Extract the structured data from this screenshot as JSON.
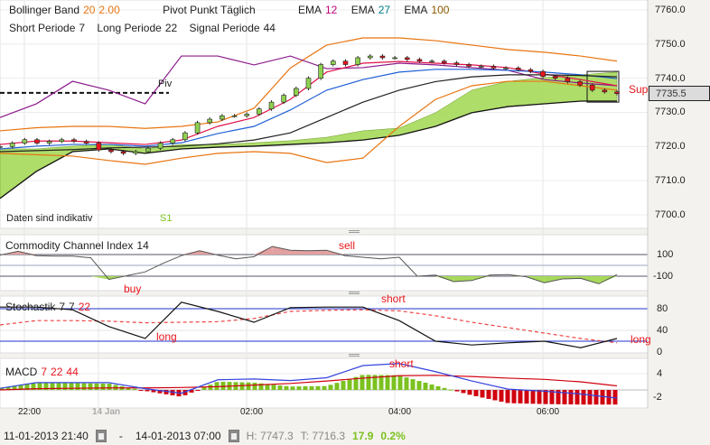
{
  "legend": {
    "line1": [
      {
        "label": "Bollinger Band",
        "params": [
          "20",
          "2.00"
        ],
        "color": "#e87511"
      },
      {
        "label": "Pivot Punkt  Täglich",
        "params": [],
        "color": "#222"
      },
      {
        "label": "EMA",
        "params": [
          "12"
        ],
        "color": "#c0007a"
      },
      {
        "label": "EMA",
        "params": [
          "27"
        ],
        "color": "#00808a"
      },
      {
        "label": "EMA",
        "params": [
          "100"
        ],
        "color": "#8a5a00"
      }
    ],
    "line2": [
      {
        "label": "Short Periode",
        "value": "7"
      },
      {
        "label": "Long Periode",
        "value": "22"
      },
      {
        "label": "Signal Periode",
        "value": "44"
      }
    ]
  },
  "annotations": {
    "piv": "Piv",
    "s1": "S1",
    "disclaimer": "Daten sind indikativ",
    "support": "Support",
    "buy": "buy",
    "sell": "sell",
    "stoch_short": "short",
    "stoch_long_left": "long",
    "stoch_long_right": "long",
    "macd_short": "short"
  },
  "current_price": "7735.5",
  "panels": {
    "cci": {
      "title": "Commodity Channel Index",
      "param": "14",
      "ticks": [
        "100",
        "-100"
      ]
    },
    "stoch": {
      "title": "Stochastik",
      "params": [
        "7",
        "7"
      ],
      "param_red": "22",
      "ticks": [
        "80",
        "40",
        "0"
      ]
    },
    "macd": {
      "title": "MACD",
      "params": [
        "7",
        "22",
        "44"
      ],
      "ticks": [
        "4",
        "-2"
      ]
    }
  },
  "footer": {
    "from": "11-01-2013 21:40",
    "sep": "-",
    "to": "14-01-2013 07:00",
    "high": "H: 7747.3",
    "low": "T: 7716.3",
    "change": "17.9",
    "change_pct": "0.2%"
  },
  "chart_data": {
    "type": "line",
    "title": "",
    "x_ticks": [
      {
        "label": "22:00",
        "h": 0
      },
      {
        "label": "14 Jan",
        "h": 1
      },
      {
        "label": "02:00",
        "h": 3
      },
      {
        "label": "04:00",
        "h": 5
      },
      {
        "label": "06:00",
        "h": 7
      }
    ],
    "x_range_hours": [
      -0.33,
      8.41
    ],
    "price_axis": {
      "ylim": [
        7697,
        7763
      ],
      "ticks": [
        "7760.0",
        "7750.0",
        "7740.0",
        "7730.0",
        "7720.0",
        "7710.0",
        "7700.0"
      ]
    },
    "pivot_level": 7735.7,
    "candles_close": [
      7720,
      7721,
      7722,
      7721,
      7721.5,
      7722,
      7721.5,
      7721,
      7719,
      7718.5,
      7718,
      7718.5,
      7719.5,
      7721,
      7722,
      7724,
      7727,
      7728,
      7729,
      7729,
      7729.5,
      7731,
      7733,
      7735,
      7737,
      7740,
      7744,
      7745,
      7744,
      7746,
      7746.5,
      7746,
      7746,
      7745.5,
      7745,
      7745,
      7744.5,
      7744,
      7743.5,
      7743.5,
      7743,
      7743,
      7742.5,
      7742,
      7740.5,
      7740,
      7739,
      7738,
      7736.5,
      7736,
      7735.5
    ],
    "series": [
      {
        "name": "Bollinger upper",
        "color": "#e87511",
        "values": [
          7724.6,
          7725.5,
          7725.9,
          7725.9,
          7725.3,
          7725.9,
          7727.2,
          7731.2,
          7743,
          7749.7,
          7751.8,
          7751.8,
          7751,
          7749.7,
          7748.4,
          7747.6,
          7746.5,
          7745
        ]
      },
      {
        "name": "Bollinger lower",
        "color": "#e87511",
        "values": [
          7718,
          7717.6,
          7717.2,
          7715.9,
          7714.8,
          7716.6,
          7718,
          7718.5,
          7718,
          7715.3,
          7716.6,
          7725.9,
          7733.8,
          7737.8,
          7739.1,
          7739.1,
          7737.8,
          7736.5
        ]
      },
      {
        "name": "Pivot",
        "color": "#8b1a8b",
        "values": [
          7728.5,
          7732.5,
          7739.1,
          7736.5,
          7732.5,
          7746.5,
          7746.5,
          7743.9,
          7746.5,
          7742.8,
          7743.1,
          7744.4,
          7743.9,
          7743.1,
          7742.3,
          7739.6,
          7738.6,
          7737.8
        ]
      },
      {
        "name": "EMA 12",
        "color": "#e0124a",
        "values": [
          7720.6,
          7721.6,
          7721.6,
          7721.1,
          7720.6,
          7721.9,
          7725.9,
          7728.5,
          7733.8,
          7741.8,
          7744.4,
          7744.9,
          7744.4,
          7743.9,
          7743.1,
          7741.2,
          7739.6,
          7737.8
        ]
      },
      {
        "name": "EMA 27",
        "color": "#1d5fd6",
        "values": [
          7719.3,
          7720.1,
          7720.6,
          7720.6,
          7720.1,
          7721.1,
          7723.8,
          7725.9,
          7730.7,
          7736.5,
          7739.6,
          7741.8,
          7742.6,
          7742.6,
          7742.3,
          7741.8,
          7741.0,
          7739.9
        ]
      },
      {
        "name": "EMA 100",
        "color": "#222222",
        "values": [
          7718.5,
          7718.8,
          7719.1,
          7719.6,
          7719.8,
          7720.1,
          7720.8,
          7721.9,
          7724,
          7728.5,
          7733,
          7736.5,
          7739,
          7740.4,
          7741,
          7741,
          7740.8,
          7740.4
        ]
      }
    ],
    "cloud": {
      "color": "#a6d95a",
      "top": [
        7719.3,
        7719.3,
        7720.1,
        7720.6,
        7719.3,
        7720.6,
        7720.6,
        7721.1,
        7721.7,
        7722.7,
        7724.6,
        7725.4,
        7729.9,
        7736.5,
        7739.1,
        7740.2,
        7741,
        7741.8
      ],
      "bottom": [
        7704.8,
        7712.7,
        7718.5,
        7719.3,
        7718,
        7719.3,
        7719.8,
        7720.1,
        7720.6,
        7721.1,
        7721.9,
        7723.3,
        7725.9,
        7729.9,
        7731.7,
        7732.5,
        7733.3,
        7733.3
      ]
    },
    "cci": {
      "ylim": [
        -200,
        200
      ],
      "levels": [
        100,
        -100
      ],
      "values": [
        95,
        130,
        90,
        85,
        85,
        70,
        -130,
        -95,
        -60,
        20,
        90,
        135,
        95,
        60,
        80,
        175,
        140,
        135,
        140,
        90,
        75,
        60,
        75,
        -100,
        -90,
        -150,
        -140,
        -90,
        -85,
        -105,
        -160,
        -125,
        -120,
        -170,
        -85
      ]
    },
    "stoch": {
      "ylim": [
        0,
        100
      ],
      "levels": [
        80,
        20
      ],
      "k": [
        83,
        83,
        78,
        47,
        25,
        92,
        75,
        55,
        82,
        83,
        83,
        58,
        20,
        13,
        17,
        20,
        8,
        25
      ],
      "d": [
        50,
        58,
        58,
        57,
        54,
        55,
        56,
        62,
        75,
        77,
        78,
        76,
        67,
        55,
        45,
        35,
        25,
        17
      ]
    },
    "macd": {
      "ylim": [
        -3,
        8
      ],
      "macd": [
        0.4,
        1.8,
        1.8,
        1.8,
        0.3,
        -0.8,
        2.5,
        2.7,
        2.3,
        3.0,
        6.0,
        6.5,
        4.5,
        2.2,
        0.2,
        -0.3,
        -1.0,
        -2.0
      ],
      "signal": [
        0,
        0.3,
        0.4,
        0.5,
        0.5,
        0.6,
        0.8,
        1.2,
        1.6,
        2.2,
        2.9,
        3.5,
        3.6,
        3.3,
        2.9,
        2.6,
        2.0,
        1.0
      ]
    }
  }
}
